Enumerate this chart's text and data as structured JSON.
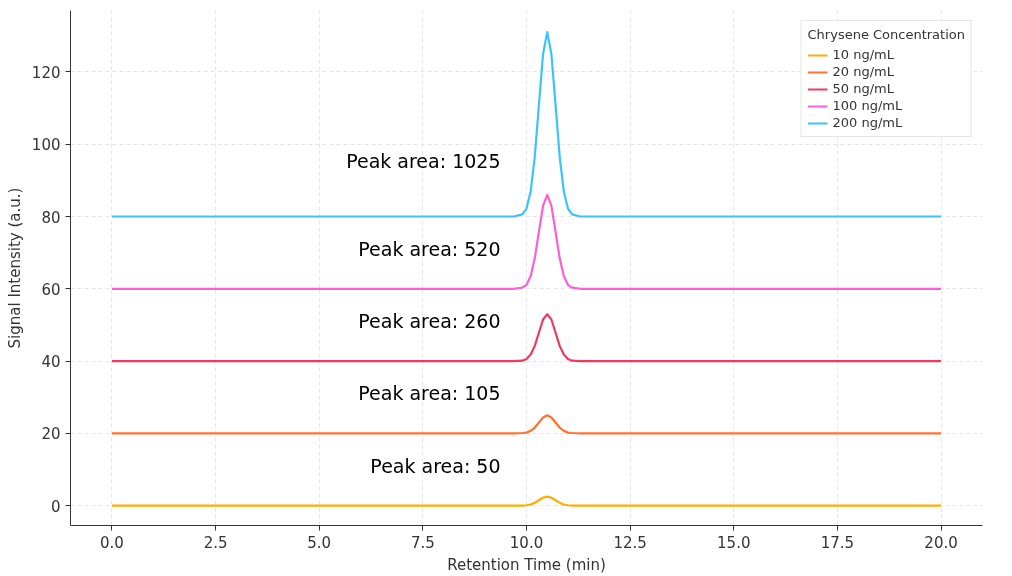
{
  "chart_data": {
    "type": "line",
    "xlabel": "Retention Time (min)",
    "ylabel": "Signal Intensity (a.u.)",
    "legend_title": "Chrysene Concentration",
    "x": [
      0,
      9.7,
      9.9,
      10.0,
      10.1,
      10.2,
      10.3,
      10.4,
      10.5,
      10.6,
      10.7,
      10.8,
      10.9,
      11.0,
      11.1,
      11.3,
      20
    ],
    "series": [
      {
        "name": "10 ng/mL",
        "color": "#ffae00",
        "values": [
          0,
          0,
          0,
          0.1,
          0.3,
          0.8,
          1.5,
          2.2,
          2.5,
          2.2,
          1.5,
          0.8,
          0.3,
          0.1,
          0,
          0,
          0
        ]
      },
      {
        "name": "20 ng/mL",
        "color": "#ff7233",
        "values": [
          20,
          20,
          20.1,
          20.2,
          20.7,
          21.6,
          23,
          24.4,
          25,
          24.4,
          23,
          21.6,
          20.7,
          20.2,
          20.1,
          20,
          20
        ]
      },
      {
        "name": "50 ng/mL",
        "color": "#f03b5c",
        "values": [
          40,
          40,
          40.1,
          40.6,
          41.8,
          44.2,
          47.9,
          51.5,
          53,
          51.5,
          47.9,
          44.2,
          41.8,
          40.6,
          40.1,
          40,
          40
        ]
      },
      {
        "name": "100 ng/mL",
        "color": "#ff5fcf",
        "values": [
          60,
          60,
          60.3,
          61.1,
          63.5,
          68.5,
          75.8,
          83,
          86,
          83,
          75.8,
          68.5,
          63.5,
          61.1,
          60.3,
          60,
          60
        ]
      },
      {
        "name": "200 ng/mL",
        "color": "#3cc3ff",
        "values": [
          80,
          80,
          80.6,
          82.2,
          86.9,
          96.6,
          111,
          125,
          131,
          125,
          111,
          96.6,
          86.9,
          82.2,
          80.6,
          80,
          80
        ]
      }
    ],
    "xlim": [
      -1,
      21
    ],
    "ylim": [
      -5.5,
      137
    ],
    "xticks": [
      {
        "value": 0,
        "label": "0.0"
      },
      {
        "value": 2.5,
        "label": "2.5"
      },
      {
        "value": 5,
        "label": "5.0"
      },
      {
        "value": 7.5,
        "label": "7.5"
      },
      {
        "value": 10,
        "label": "10.0"
      },
      {
        "value": 12.5,
        "label": "12.5"
      },
      {
        "value": 15,
        "label": "15.0"
      },
      {
        "value": 17.5,
        "label": "17.5"
      },
      {
        "value": 20,
        "label": "20.0"
      }
    ],
    "yticks": [
      0,
      20,
      40,
      60,
      80,
      100,
      120
    ],
    "grid": true,
    "legend": "top right",
    "line_style": "solid",
    "annotations": [
      "Peak area: 1025",
      "Peak area: 520",
      "Peak area: 260",
      "Peak area: 105",
      "Peak area: 50"
    ]
  }
}
